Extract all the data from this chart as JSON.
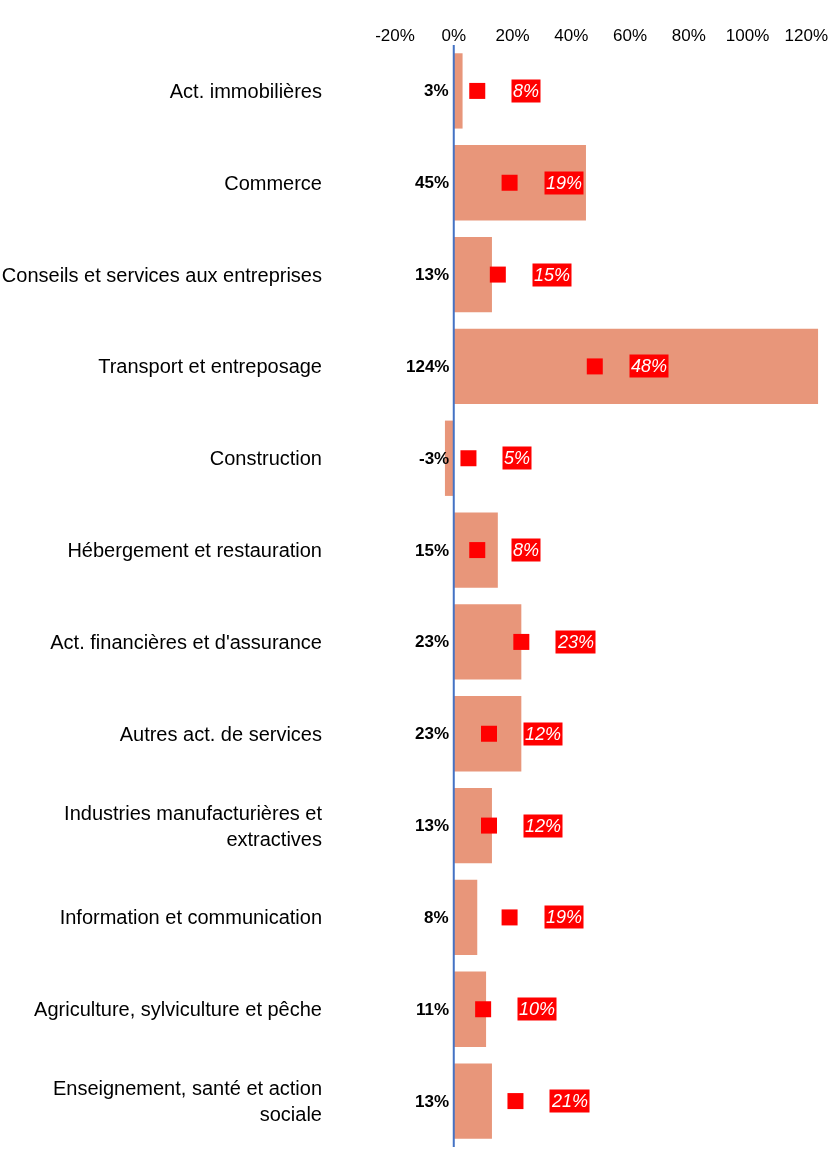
{
  "chart_data": {
    "type": "bar",
    "orientation": "horizontal",
    "categories": [
      "Act. immobilières",
      "Commerce",
      "Conseils et services aux entreprises",
      "Transport et entreposage",
      "Construction",
      "Hébergement et restauration",
      "Act. financières et d'assurance",
      "Autres act. de services",
      "Industries manufacturières et extractives",
      "Information et communication",
      "Agriculture, sylviculture et pêche",
      "Enseignement, santé et action sociale"
    ],
    "series": [
      {
        "color": "#e8967a",
        "values": [
          3,
          45,
          13,
          124,
          -3,
          15,
          23,
          23,
          13,
          8,
          11,
          13
        ],
        "value_labels": [
          "3%",
          "45%",
          "13%",
          "124%",
          "-3%",
          "15%",
          "23%",
          "23%",
          "13%",
          "8%",
          "11%",
          "13%"
        ]
      },
      {
        "type": "scatter",
        "color": "#ff0000",
        "marker": "square",
        "values": [
          8,
          19,
          15,
          48,
          5,
          8,
          23,
          12,
          12,
          19,
          10,
          21
        ],
        "value_labels": [
          "8%",
          "19%",
          "15%",
          "48%",
          "5%",
          "8%",
          "23%",
          "12%",
          "12%",
          "19%",
          "10%",
          "21%"
        ]
      }
    ],
    "data_labels": true,
    "xlim": [
      -20,
      125
    ],
    "xticks": [
      {
        "value": -20,
        "label": "-20%"
      },
      {
        "value": 0,
        "label": "0%"
      },
      {
        "value": 20,
        "label": "20%"
      },
      {
        "value": 40,
        "label": "40%"
      },
      {
        "value": 60,
        "label": "60%"
      },
      {
        "value": 80,
        "label": "80%"
      },
      {
        "value": 100,
        "label": "100%"
      },
      {
        "value": 120,
        "label": "120%"
      }
    ],
    "ref_lines": [
      {
        "axis": "x",
        "value": 0,
        "color": "#4472c4"
      }
    ],
    "grid": false
  }
}
